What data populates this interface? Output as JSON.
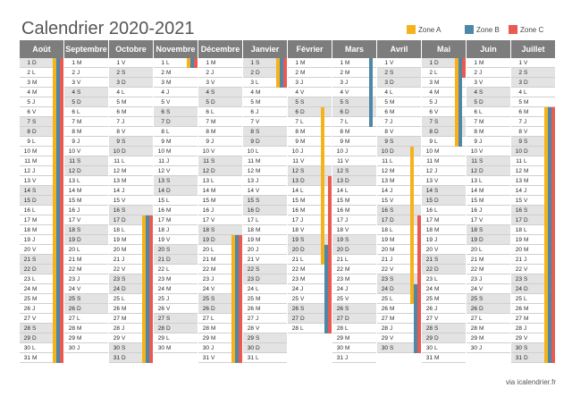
{
  "title": "Calendrier 2020-2021",
  "legend": [
    {
      "label": "Zone A",
      "color": "#f6b21b"
    },
    {
      "label": "Zone B",
      "color": "#4f87a8"
    },
    {
      "label": "Zone C",
      "color": "#ea5a50"
    }
  ],
  "months": [
    {
      "name": "Août",
      "days": 31,
      "start": 6,
      "zones": {
        "A": [
          1,
          31
        ],
        "B": [
          1,
          31
        ],
        "C": [
          1,
          31
        ]
      }
    },
    {
      "name": "Septembre",
      "days": 30,
      "start": 2,
      "zones": {}
    },
    {
      "name": "Octobre",
      "days": 31,
      "start": 4,
      "zones": {
        "A": [
          17,
          31
        ],
        "B": [
          17,
          31
        ],
        "C": [
          17,
          31
        ]
      }
    },
    {
      "name": "Novembre",
      "days": 30,
      "start": 0,
      "zones": {
        "A": [
          1,
          1
        ],
        "B": [
          1,
          1
        ],
        "C": [
          1,
          1
        ]
      }
    },
    {
      "name": "Décembre",
      "days": 31,
      "start": 2,
      "zones": {
        "A": [
          19,
          31
        ],
        "B": [
          19,
          31
        ],
        "C": [
          19,
          31
        ]
      }
    },
    {
      "name": "Janvier",
      "days": 31,
      "start": 5,
      "zones": {
        "A": [
          1,
          3
        ],
        "B": [
          1,
          3
        ],
        "C": [
          1,
          3
        ]
      }
    },
    {
      "name": "Février",
      "days": 28,
      "start": 1,
      "zones": {
        "A": [
          6,
          21
        ],
        "B": [
          20,
          28
        ],
        "C": [
          13,
          28
        ]
      }
    },
    {
      "name": "Mars",
      "days": 31,
      "start": 1,
      "zones": {
        "B": [
          1,
          7
        ]
      }
    },
    {
      "name": "Avril",
      "days": 30,
      "start": 4,
      "zones": {
        "A": [
          10,
          25
        ],
        "B": [
          24,
          30
        ],
        "C": [
          17,
          30
        ]
      }
    },
    {
      "name": "Mai",
      "days": 31,
      "start": 6,
      "zones": {
        "A": [
          1,
          9
        ],
        "B": [
          1,
          9
        ],
        "C": [
          1,
          2
        ]
      }
    },
    {
      "name": "Juin",
      "days": 30,
      "start": 2,
      "zones": {}
    },
    {
      "name": "Juillet",
      "days": 31,
      "start": 4,
      "zones": {
        "A": [
          6,
          31
        ],
        "B": [
          6,
          31
        ],
        "C": [
          6,
          31
        ]
      }
    }
  ],
  "weekday_letters": [
    "L",
    "M",
    "M",
    "J",
    "V",
    "S",
    "D"
  ],
  "footer": "via icalendrier.fr"
}
